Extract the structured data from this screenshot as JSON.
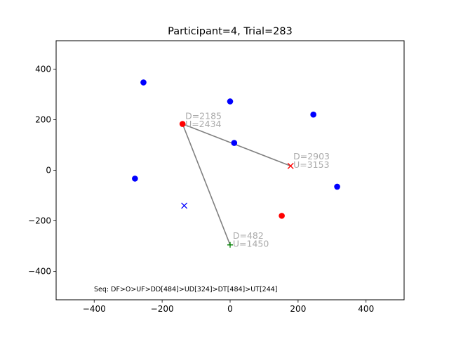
{
  "chart_data": {
    "type": "scatter",
    "title": "Participant=4, Trial=283",
    "xlabel": "",
    "ylabel": "",
    "xlim": [
      -512,
      512
    ],
    "ylim": [
      -512,
      512
    ],
    "x_ticks": [
      -400,
      -200,
      0,
      200,
      400
    ],
    "y_ticks": [
      -400,
      -200,
      0,
      200,
      400
    ],
    "x_tick_labels": [
      "−400",
      "−200",
      "0",
      "200",
      "400"
    ],
    "y_tick_labels": [
      "−400",
      "−200",
      "0",
      "200",
      "400"
    ],
    "grid": false,
    "colors": {
      "blue": "#0000ff",
      "red": "#ff0000",
      "green": "#008000",
      "line": "#808080",
      "annotation": "#aaaaaa"
    },
    "blue_points": [
      {
        "x": -255,
        "y": 347
      },
      {
        "x": 0,
        "y": 272
      },
      {
        "x": 245,
        "y": 220
      },
      {
        "x": 12,
        "y": 108
      },
      {
        "x": -280,
        "y": -33
      },
      {
        "x": 315,
        "y": -65
      }
    ],
    "red_points": [
      {
        "x": -140,
        "y": 183
      },
      {
        "x": 152,
        "y": -180
      }
    ],
    "path": [
      {
        "x": 0,
        "y": -295
      },
      {
        "x": -140,
        "y": 183
      },
      {
        "x": 178,
        "y": 17
      }
    ],
    "markers": [
      {
        "type": "x",
        "x": -135,
        "y": -140,
        "color": "#0000ff"
      },
      {
        "type": "x",
        "x": 178,
        "y": 17,
        "color": "#ff0000"
      },
      {
        "type": "plus",
        "x": 0,
        "y": -295,
        "color": "#008000"
      }
    ],
    "annotations": [
      {
        "x": -132,
        "y": 203,
        "text": "D=2185"
      },
      {
        "x": -132,
        "y": 170,
        "text": "U=2434"
      },
      {
        "x": 186,
        "y": 43,
        "text": "D=2903"
      },
      {
        "x": 186,
        "y": 10,
        "text": "U=3153"
      },
      {
        "x": 8,
        "y": -270,
        "text": "D=482"
      },
      {
        "x": 8,
        "y": -303,
        "text": "U=1450"
      }
    ],
    "footer_text": "Seq: DF>O>UF>DD[484]>UD[324]>DT[484]>UT[244]"
  }
}
